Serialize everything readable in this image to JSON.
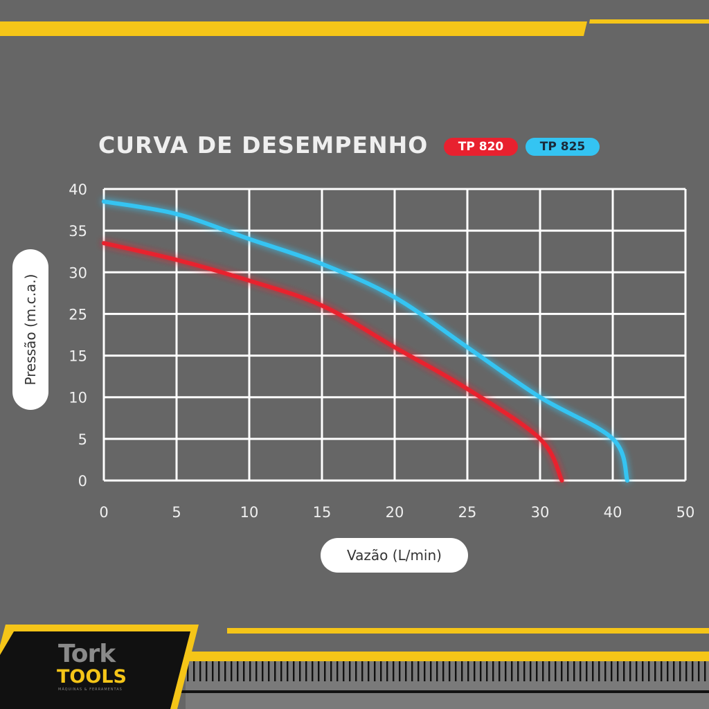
{
  "title": "CURVA DE DESEMPENHO",
  "legend": [
    {
      "label": "TP 820",
      "color": "#e8212f"
    },
    {
      "label": "TP 825",
      "color": "#34c4f2"
    }
  ],
  "colors": {
    "background": "#666666",
    "accent_yellow": "#f5c518",
    "grid": "#ffffff"
  },
  "brand": {
    "line1": "Tork",
    "line2": "TOOLS",
    "tagline": "MÁQUINAS & FERRAMENTAS"
  },
  "chart_data": {
    "type": "line",
    "title": "CURVA DE DESEMPENHO",
    "xlabel": "Vazão (L/min)",
    "ylabel": "Pressão (m.c.a.)",
    "xlim": [
      0,
      50
    ],
    "x_ticks": [
      0,
      5,
      10,
      15,
      20,
      25,
      30,
      40,
      50
    ],
    "y_ticks": [
      0,
      5,
      10,
      15,
      25,
      30,
      35,
      40
    ],
    "grid": true,
    "legend_position": "top-right",
    "series": [
      {
        "name": "TP 820",
        "color": "#e8212f",
        "x": [
          0,
          5,
          10,
          15,
          20,
          25,
          30,
          33
        ],
        "y": [
          33.5,
          31.5,
          29,
          26,
          17,
          11,
          5,
          0
        ]
      },
      {
        "name": "TP 825",
        "color": "#34c4f2",
        "x": [
          0,
          5,
          10,
          15,
          20,
          25,
          30,
          40,
          42
        ],
        "y": [
          38.5,
          37,
          34,
          31,
          27,
          17,
          10,
          5,
          0
        ]
      }
    ]
  }
}
